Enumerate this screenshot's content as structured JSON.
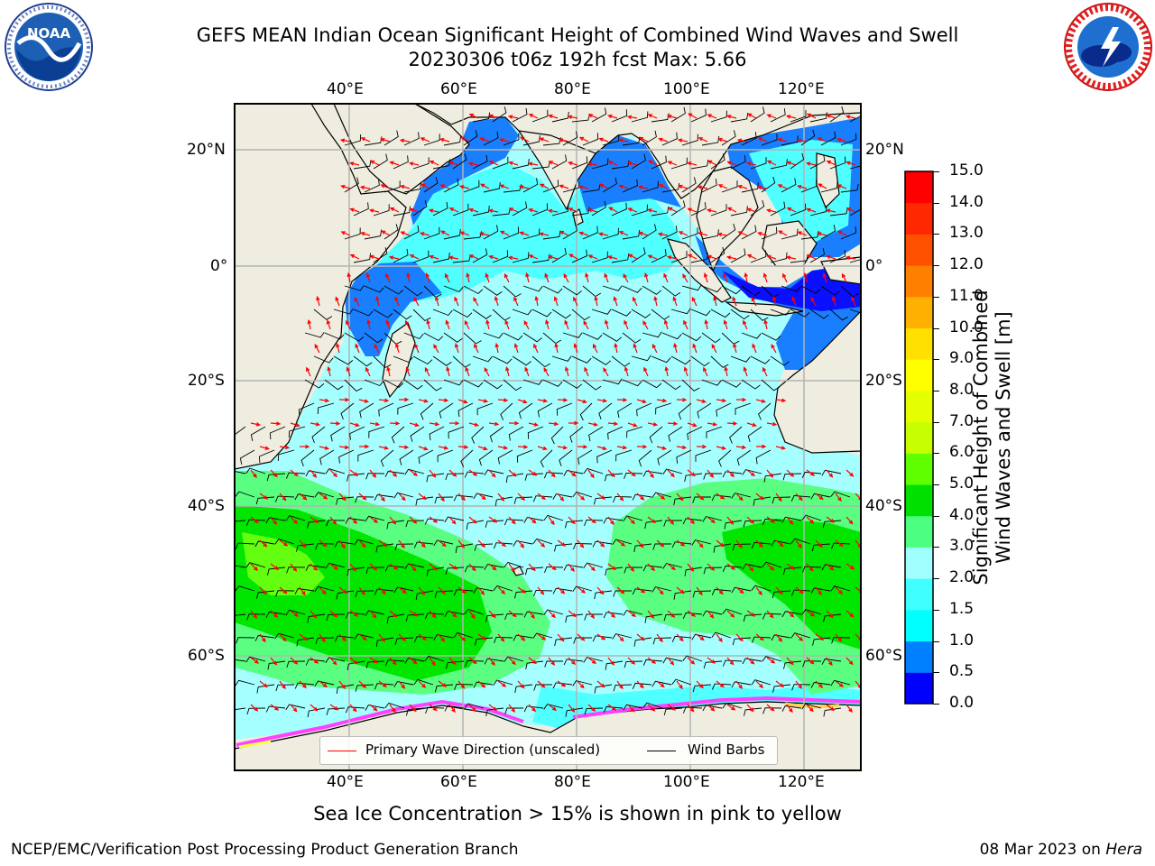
{
  "title": {
    "line1": "GEFS MEAN Indian Ocean Significant Height of Combined Wind Waves and Swell",
    "line2": "20230306 t06z 192h fcst   Max: 5.66"
  },
  "logos": {
    "left": "noaa-logo",
    "right": "nws-logo"
  },
  "map": {
    "region": "Indian Ocean",
    "lon_ticks": [
      "40°E",
      "60°E",
      "80°E",
      "100°E",
      "120°E"
    ],
    "lat_ticks_left": [
      "20°N",
      "0°",
      "20°S",
      "40°S",
      "60°S"
    ],
    "lat_ticks_right": [
      "20°N",
      "0°",
      "20°S",
      "40°S",
      "60°S"
    ],
    "legend": {
      "wave_direction": "Primary Wave Direction (unscaled)",
      "wind_barbs": "Wind Barbs"
    },
    "colors": {
      "land": "#efeddf",
      "wave_arrow": "#ff0000",
      "barb": "#000000",
      "grid": "#b4b4b4"
    }
  },
  "colorbar": {
    "label_line1": "Significant Height of Combined",
    "label_line2": "Wind Waves and Swell [m]",
    "ticks": [
      "0.0",
      "0.5",
      "1.0",
      "1.5",
      "2.0",
      "3.0",
      "4.0",
      "5.0",
      "6.0",
      "7.0",
      "8.0",
      "9.0",
      "10.0",
      "11.0",
      "12.0",
      "13.0",
      "14.0",
      "15.0"
    ],
    "colors": [
      "#0000ff",
      "#0080ff",
      "#00ffff",
      "#40ffff",
      "#a0ffff",
      "#4dff80",
      "#00e000",
      "#60ff00",
      "#c8ff00",
      "#e6ff00",
      "#ffff00",
      "#ffe000",
      "#ffb000",
      "#ff8000",
      "#ff5000",
      "#ff2800",
      "#ff0000"
    ]
  },
  "caption": "Sea Ice Concentration > 15% is shown in pink to yellow",
  "footer": {
    "left": "NCEP/EMC/Verification Post Processing Product Generation Branch",
    "right_date": "08 Mar 2023 on",
    "right_host": "Hera"
  }
}
